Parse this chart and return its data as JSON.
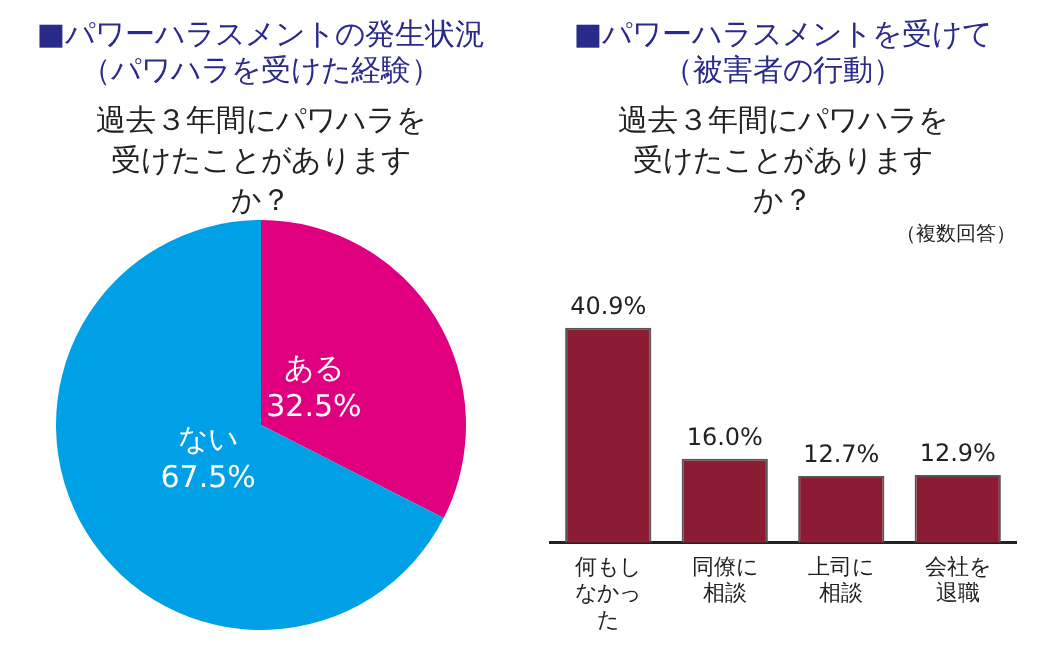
{
  "chart_data": [
    {
      "type": "pie",
      "title": "■パワーハラスメントの発生状況（パワハラを受けた経験）",
      "subtitle": "過去３年間にパワハラを受けたことがありますか？",
      "categories": [
        "ある",
        "ない"
      ],
      "values": [
        32.5,
        67.5
      ],
      "colors": [
        "#e0007f",
        "#00a0e6"
      ],
      "value_labels": [
        "32.5%",
        "67.5%"
      ],
      "legend": false
    },
    {
      "type": "bar",
      "title": "■パワーハラスメントを受けて（被害者の行動）",
      "subtitle": "過去３年間にパワハラを受けたことがありますか？",
      "annotations": [
        "（複数回答）"
      ],
      "categories": [
        "何もしなかった",
        "同僚に相談",
        "上司に相談",
        "会社を退職"
      ],
      "values": [
        40.9,
        16.0,
        12.7,
        12.9
      ],
      "color": "#8b1c33",
      "value_labels": [
        "40.9%",
        "16.0%",
        "12.7%",
        "12.9%"
      ],
      "legend": false,
      "grid": false
    }
  ]
}
